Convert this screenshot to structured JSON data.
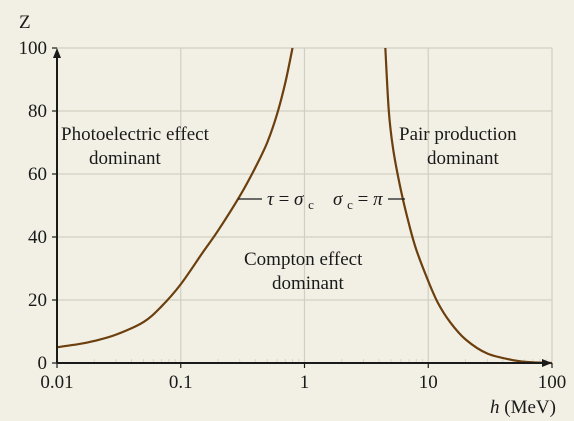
{
  "chart_data": {
    "type": "line",
    "ylabel": "Z",
    "xlabel_symbol": "h",
    "xlabel_unit": "(MeV)",
    "x_scale": "log",
    "xlim": [
      0.01,
      100
    ],
    "ylim": [
      0,
      100
    ],
    "x_ticks": [
      0.01,
      0.1,
      1,
      10,
      100
    ],
    "x_tick_labels": [
      "0.01",
      "0.1",
      "1",
      "10",
      "100"
    ],
    "y_ticks": [
      0,
      20,
      40,
      60,
      80,
      100
    ],
    "y_tick_labels": [
      "0",
      "20",
      "40",
      "60",
      "80",
      "100"
    ],
    "grid": true,
    "series": [
      {
        "label": "τ = σc",
        "x": [
          0.01,
          0.015,
          0.02,
          0.03,
          0.05,
          0.07,
          0.1,
          0.15,
          0.2,
          0.3,
          0.4,
          0.5,
          0.6,
          0.7,
          0.8
        ],
        "y": [
          5,
          6,
          7,
          9,
          13,
          18,
          25,
          35,
          42,
          53,
          62,
          70,
          79,
          89,
          100
        ]
      },
      {
        "label": "σc = π",
        "x": [
          4.5,
          4.8,
          5.2,
          6,
          7,
          8,
          10,
          12,
          15,
          20,
          30,
          50,
          70,
          100
        ],
        "y": [
          100,
          80,
          68,
          55,
          44,
          36,
          26,
          19,
          13,
          7.5,
          3,
          0.8,
          0.2,
          0
        ]
      }
    ],
    "annotations": {
      "photoelectric": [
        "Photoelectric effect",
        "dominant"
      ],
      "pair": [
        "Pair production",
        "dominant"
      ],
      "compton": [
        "Compton effect",
        "dominant"
      ],
      "tau_label": {
        "tau": "τ",
        "eq": " = ",
        "sigma": "σ",
        "sub": "c"
      },
      "pi_label": {
        "sigma": "σ",
        "sub": "c",
        "eq": " = ",
        "pi": "π"
      }
    }
  },
  "colors": {
    "background": "#f2f0e5",
    "grid": "#d2cfc2",
    "curve": "#6b3f0e",
    "axis": "#1a1a1a"
  }
}
